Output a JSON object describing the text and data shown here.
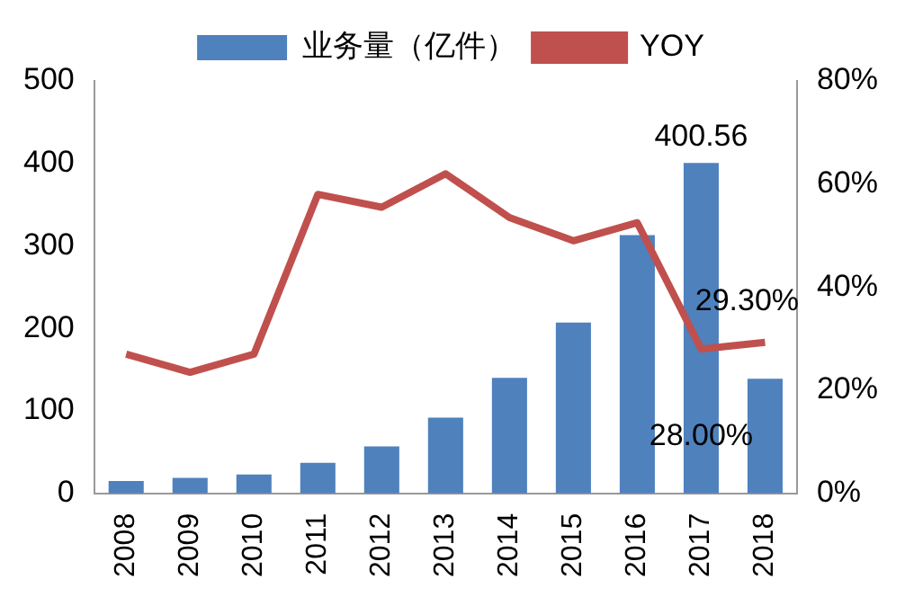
{
  "chart_data": {
    "type": "bar",
    "categories": [
      "2008",
      "2009",
      "2010",
      "2011",
      "2012",
      "2013",
      "2014",
      "2015",
      "2016",
      "2017",
      "2018"
    ],
    "series": [
      {
        "name": "业务量（亿件）",
        "color": "#4f81bd",
        "values": [
          15,
          19,
          23,
          37,
          57,
          92,
          140,
          207,
          313,
          400.56,
          139
        ],
        "value_labels": [
          null,
          null,
          null,
          null,
          null,
          null,
          null,
          null,
          null,
          "400.56",
          null
        ]
      },
      {
        "name": "YOY",
        "type": "line",
        "axis": "y2",
        "color": "#c0504d",
        "values": [
          27,
          23.5,
          27,
          58,
          55.5,
          62,
          53.5,
          49,
          52.5,
          28.0,
          29.3
        ],
        "value_labels": [
          null,
          null,
          null,
          null,
          null,
          null,
          null,
          null,
          null,
          "28.00%",
          "29.30%"
        ]
      }
    ],
    "ylim": [
      0,
      500
    ],
    "yticks": [
      0,
      100,
      200,
      300,
      400,
      500
    ],
    "y2lim": [
      0,
      80
    ],
    "y2ticks": [
      {
        "value": 0,
        "label": "0%"
      },
      {
        "value": 20,
        "label": "20%"
      },
      {
        "value": 40,
        "label": "40%"
      },
      {
        "value": 60,
        "label": "60%"
      },
      {
        "value": 80,
        "label": "80%"
      }
    ],
    "grid": false,
    "legend": "top",
    "marker": "none",
    "line_style": "solid"
  }
}
